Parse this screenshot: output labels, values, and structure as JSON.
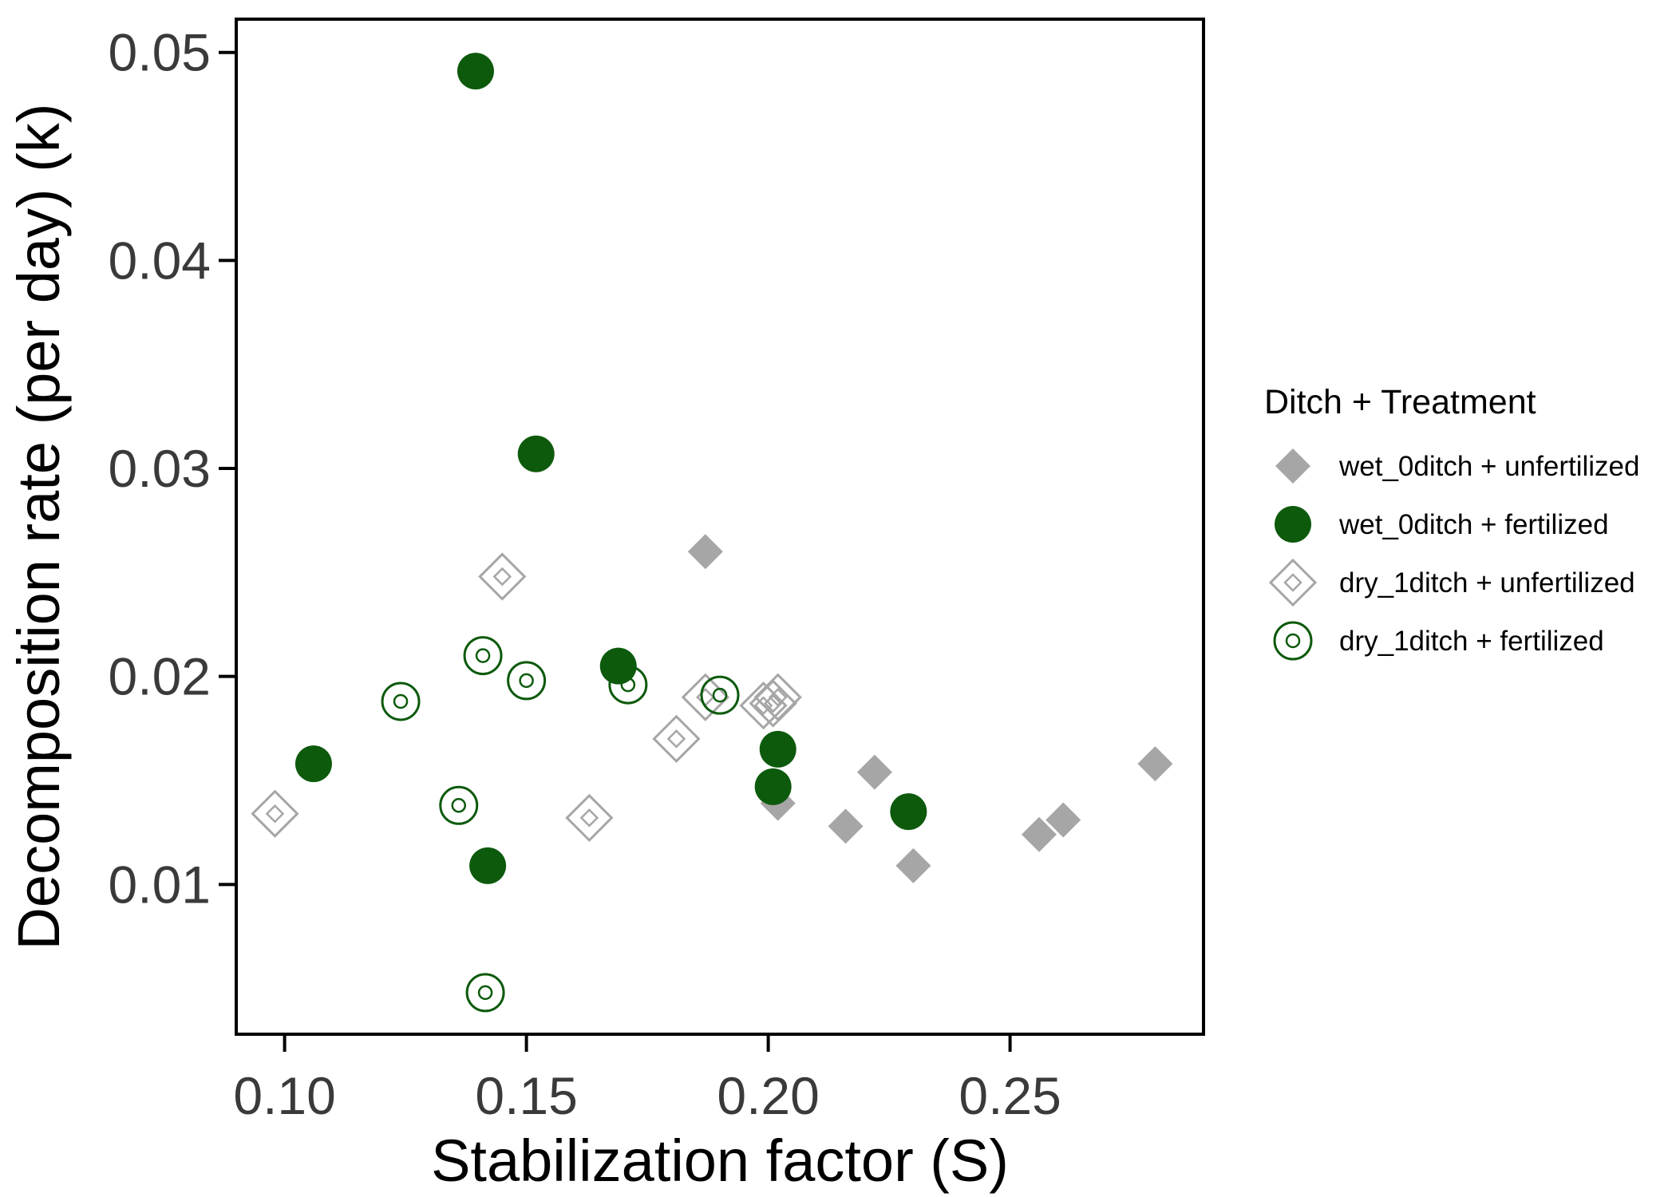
{
  "chart_data": {
    "type": "scatter",
    "xlabel": "Stabilization factor (S)",
    "ylabel": "Decomposition rate (per day) (k)",
    "xlim": [
      0.09,
      0.29
    ],
    "ylim": [
      0.0028,
      0.0516
    ],
    "xticks": [
      0.1,
      0.15,
      0.2,
      0.25
    ],
    "xtick_labels": [
      "0.10",
      "0.15",
      "0.20",
      "0.25"
    ],
    "yticks": [
      0.01,
      0.02,
      0.03,
      0.04,
      0.05
    ],
    "ytick_labels": [
      "0.01",
      "0.02",
      "0.03",
      "0.04",
      "0.05"
    ],
    "grid": false,
    "legend": {
      "title": "Ditch + Treatment",
      "placement": "right"
    },
    "series": [
      {
        "name": "wet_0ditch + unfertilized",
        "marker": "filled-diamond",
        "color": "#a6a6a6",
        "points": [
          [
            0.187,
            0.026
          ],
          [
            0.202,
            0.0139
          ],
          [
            0.216,
            0.0128
          ],
          [
            0.222,
            0.0154
          ],
          [
            0.23,
            0.0109
          ],
          [
            0.256,
            0.0124
          ],
          [
            0.261,
            0.0131
          ],
          [
            0.28,
            0.0158
          ]
        ]
      },
      {
        "name": "wet_0ditch + fertilized",
        "marker": "filled-circle",
        "color": "#0d5a0d",
        "points": [
          [
            0.1395,
            0.0491
          ],
          [
            0.152,
            0.0307
          ],
          [
            0.169,
            0.0205
          ],
          [
            0.106,
            0.0158
          ],
          [
            0.202,
            0.0165
          ],
          [
            0.201,
            0.0147
          ],
          [
            0.142,
            0.0109
          ],
          [
            0.229,
            0.0135
          ]
        ]
      },
      {
        "name": "dry_1ditch + unfertilized",
        "marker": "open-diamond-dot",
        "color": "#a6a6a6",
        "points": [
          [
            0.145,
            0.0248
          ],
          [
            0.187,
            0.019
          ],
          [
            0.199,
            0.0186
          ],
          [
            0.201,
            0.0187
          ],
          [
            0.202,
            0.019
          ],
          [
            0.181,
            0.017
          ],
          [
            0.163,
            0.0132
          ],
          [
            0.098,
            0.0134
          ]
        ]
      },
      {
        "name": "dry_1ditch + fertilized",
        "marker": "open-circle-dot",
        "color": "#0d5a0d",
        "points": [
          [
            0.141,
            0.021
          ],
          [
            0.15,
            0.0198
          ],
          [
            0.124,
            0.0188
          ],
          [
            0.171,
            0.0196
          ],
          [
            0.19,
            0.0191
          ],
          [
            0.136,
            0.0138
          ],
          [
            0.1415,
            0.0048
          ]
        ]
      }
    ]
  }
}
